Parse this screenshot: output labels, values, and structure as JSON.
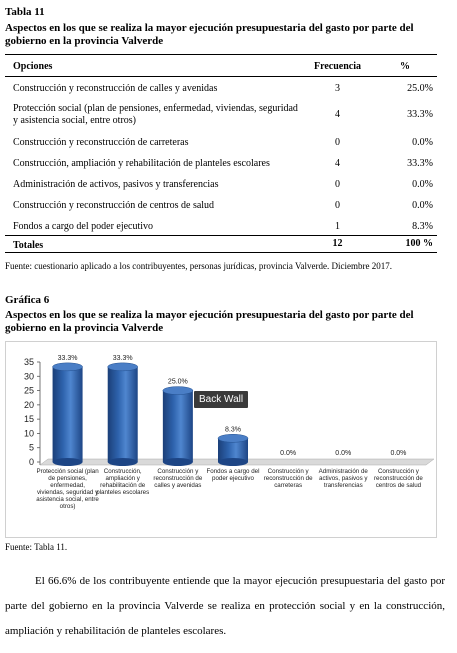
{
  "table_label": "Tabla 11",
  "table_title": "Aspectos en los que se realiza la mayor ejecución presupuestaria del gasto por parte del gobierno en la provincia Valverde",
  "table": {
    "headers": {
      "option": "Opciones",
      "freq": "Frecuencia",
      "pct": "%"
    },
    "rows": [
      {
        "option": "Construcción y reconstrucción de calles y avenidas",
        "freq": "3",
        "pct": "25.0%"
      },
      {
        "option": "Protección social (plan de pensiones, enfermedad, viviendas, seguridad y asistencia social, entre otros)",
        "freq": "4",
        "pct": "33.3%"
      },
      {
        "option": "Construcción y reconstrucción de carreteras",
        "freq": "0",
        "pct": "0.0%"
      },
      {
        "option": "Construcción, ampliación y rehabilitación de planteles escolares",
        "freq": "4",
        "pct": "33.3%"
      },
      {
        "option": "Administración de activos, pasivos y transferencias",
        "freq": "0",
        "pct": "0.0%"
      },
      {
        "option": "Construcción y reconstrucción de centros de salud",
        "freq": "0",
        "pct": "0.0%"
      },
      {
        "option": "Fondos a cargo del poder ejecutivo",
        "freq": "1",
        "pct": "8.3%"
      }
    ],
    "totals": {
      "label": "Totales",
      "freq": "12",
      "pct": "100 %"
    }
  },
  "table_source": "Fuente: cuestionario aplicado a los contribuyentes, personas jurídicas,  provincia Valverde. Diciembre 2017.",
  "figure_label": "Gráfica 6",
  "figure_title": "Aspectos en los que se realiza la mayor ejecución presupuestaria del gasto por parte del gobierno en la provincia Valverde",
  "chart_tooltip": "Back Wall",
  "chart_data": {
    "type": "bar",
    "categories": [
      "Protección social (plan de pensiones, enfermedad, viviendas, seguridad y asistencia social, entre otros)",
      "Construcción, ampliación y rehabilitación de planteles escolares",
      "Construcción y reconstrucción de calles y avenidas",
      "Fondos a cargo del poder ejecutivo",
      "Construcción y reconstrucción de carreteras",
      "Administración de activos, pasivos y transferencias",
      "Construcción y reconstrucción de centros de salud"
    ],
    "values": [
      33.3,
      33.3,
      25.0,
      8.3,
      0.0,
      0.0,
      0.0
    ],
    "data_labels": [
      "33.3%",
      "33.3%",
      "25.0%",
      "8.3%",
      "0.0%",
      "0.0%",
      "0.0%"
    ],
    "yticks": [
      "0",
      "5",
      "10",
      "15",
      "20",
      "25",
      "30",
      "35"
    ],
    "ylim": [
      0,
      35
    ],
    "grid": false,
    "bar_color": "#2e63ad"
  },
  "figure_source": "Fuente: Tabla 11.",
  "paragraph": "El 66.6% de los contribuyente entiende que la mayor ejecución presupuestaria del gasto por parte del gobierno en la provincia Valverde se realiza en protección social y en la construcción, ampliación y rehabilitación de planteles escolares."
}
